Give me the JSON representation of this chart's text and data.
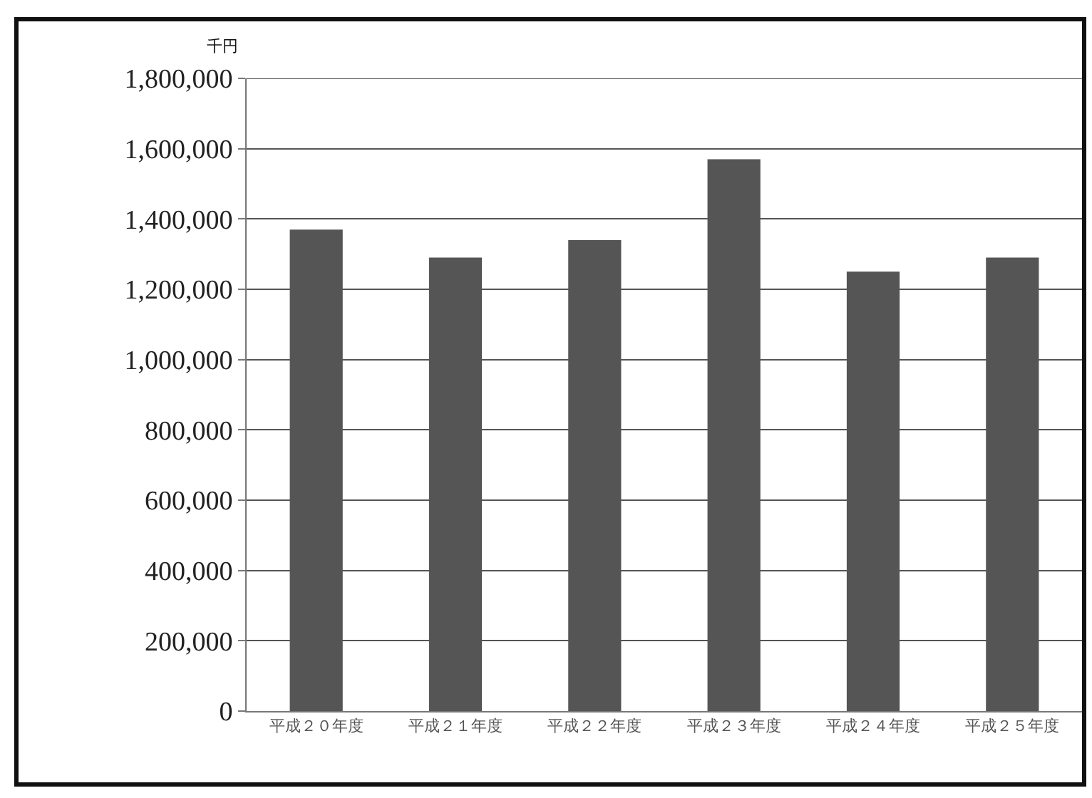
{
  "chart_data": {
    "type": "bar",
    "ylabel": "千円",
    "categories": [
      "平成２０年度",
      "平成２１年度",
      "平成２２年度",
      "平成２３年度",
      "平成２４年度",
      "平成２５年度"
    ],
    "values": [
      1370000,
      1290000,
      1340000,
      1570000,
      1250000,
      1290000
    ],
    "color": "#555555",
    "ylim": [
      0,
      1800000
    ],
    "yticks": [
      0,
      {
        "value": 200000,
        "label": "200,000"
      },
      {
        "value": 400000,
        "label": "400,000"
      },
      {
        "value": 600000,
        "label": "600,000"
      },
      {
        "value": 800000,
        "label": "800,000"
      },
      {
        "value": 1000000,
        "label": "1,000,000"
      },
      {
        "value": 1200000,
        "label": "1,200,000"
      },
      {
        "value": 1400000,
        "label": "1,400,000"
      },
      {
        "value": 1600000,
        "label": "1,600,000"
      },
      {
        "value": 1800000,
        "label": "1,800,000"
      }
    ],
    "grid": "y"
  }
}
